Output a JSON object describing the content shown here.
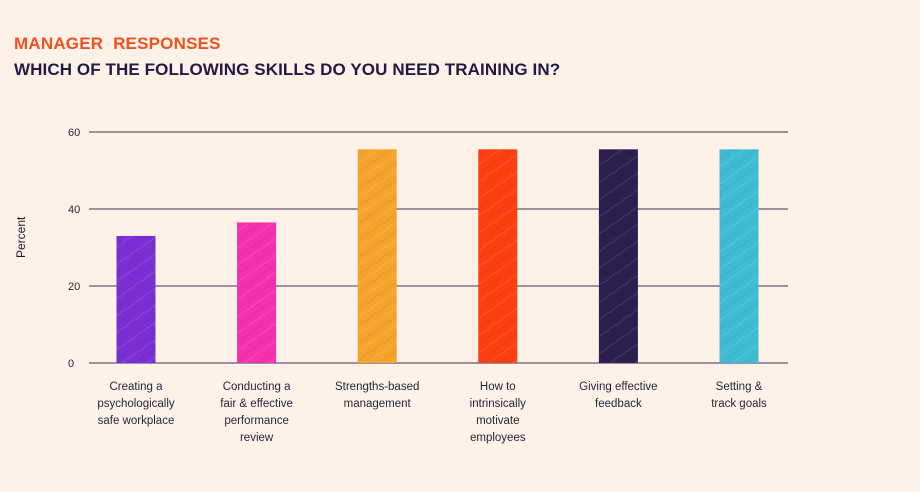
{
  "header": {
    "kicker": "MANAGER  RESPONSES",
    "title": "WHICH OF THE FOLLOWING SKILLS DO YOU NEED TRAINING IN?"
  },
  "chart_data": {
    "type": "bar",
    "ylabel": "Percent",
    "ylim": [
      0,
      60
    ],
    "yticks": [
      0,
      20,
      40,
      60
    ],
    "grid": true,
    "categories": [
      "Creating a psychologically safe workplace",
      "Conducting a fair & effective performance review",
      "Strengths-based management",
      "How to intrinsically motivate employees",
      "Giving effective feedback",
      "Setting & track goals"
    ],
    "category_lines": [
      [
        "Creating a",
        "psychologically",
        "safe workplace"
      ],
      [
        "Conducting a",
        "fair & effective",
        "performance",
        "review"
      ],
      [
        "Strengths-based",
        "management"
      ],
      [
        "How to",
        "intrinsically",
        "motivate",
        "employees"
      ],
      [
        "Giving effective",
        "feedback"
      ],
      [
        "Setting &",
        "track goals"
      ]
    ],
    "values": [
      33,
      36.5,
      55.5,
      55.5,
      55.5,
      55.5
    ],
    "colors": [
      "#7b2ed3",
      "#f52fb0",
      "#f4a42a",
      "#fb3f10",
      "#2a1f4e",
      "#3fbcd4"
    ]
  }
}
